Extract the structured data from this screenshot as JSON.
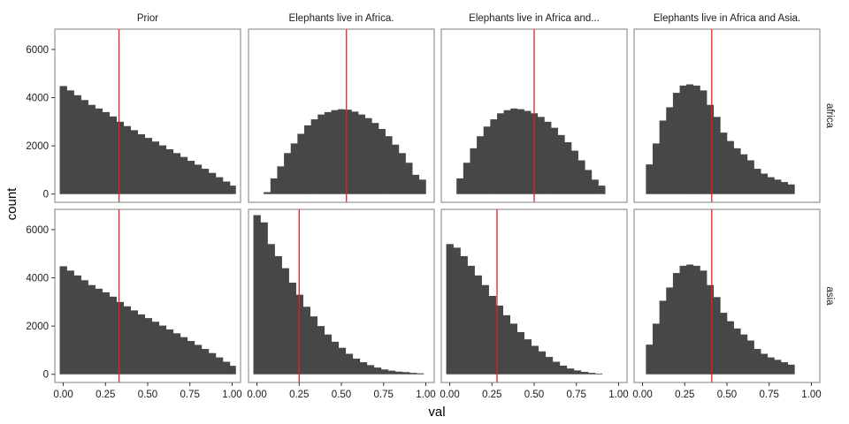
{
  "chart_data": {
    "type": "bar",
    "subtype": "histogram-facet-grid",
    "xlabel": "val",
    "ylabel": "count",
    "columns": [
      "Prior",
      "Elephants live in Africa.",
      "Elephants live in Africa and...",
      "Elephants live in Africa and Asia."
    ],
    "rows": [
      "africa",
      "asia"
    ],
    "xlim": [
      0,
      1
    ],
    "ylim": [
      0,
      6800
    ],
    "x_ticks": [
      0,
      0.25,
      0.5,
      0.75,
      1
    ],
    "x_tick_labels": [
      "0.00",
      "0.25",
      "0.50",
      "0.75",
      "1.00"
    ],
    "y_ticks": [
      0,
      2000,
      4000,
      6000
    ],
    "y_tick_labels": [
      "0",
      "2000",
      "4000",
      "6000"
    ],
    "colors": {
      "bar": "#474747",
      "reference_line": "#ee1c1c",
      "panel_border": "#7f7f7f"
    },
    "grid": false,
    "panels": [
      {
        "row": "africa",
        "column": "Prior",
        "bar_centers": [
          0.0,
          0.042,
          0.084,
          0.126,
          0.168,
          0.21,
          0.252,
          0.294,
          0.336,
          0.378,
          0.42,
          0.462,
          0.504,
          0.546,
          0.588,
          0.63,
          0.672,
          0.714,
          0.756,
          0.798,
          0.84,
          0.882,
          0.924,
          0.966,
          1.0
        ],
        "bar_width": 0.042,
        "counts": [
          4480,
          4300,
          4100,
          3900,
          3700,
          3550,
          3400,
          3220,
          3000,
          2820,
          2650,
          2480,
          2330,
          2180,
          2020,
          1860,
          1700,
          1540,
          1380,
          1220,
          1050,
          880,
          700,
          520,
          350
        ],
        "reference_line_x": 0.33
      },
      {
        "row": "africa",
        "column": "Elephants live in Africa.",
        "bar_centers": [
          0.02,
          0.06,
          0.1,
          0.14,
          0.18,
          0.22,
          0.26,
          0.3,
          0.34,
          0.38,
          0.42,
          0.46,
          0.5,
          0.54,
          0.58,
          0.62,
          0.66,
          0.7,
          0.74,
          0.78,
          0.82,
          0.86,
          0.9,
          0.94,
          0.98
        ],
        "bar_width": 0.04,
        "counts": [
          0,
          80,
          650,
          1150,
          1700,
          2100,
          2500,
          2850,
          3100,
          3300,
          3400,
          3480,
          3520,
          3500,
          3420,
          3300,
          3150,
          2950,
          2700,
          2400,
          2050,
          1700,
          1300,
          800,
          600
        ],
        "reference_line_x": 0.53
      },
      {
        "row": "africa",
        "column": "Elephants live in Africa and...",
        "bar_centers": [
          0.02,
          0.06,
          0.1,
          0.14,
          0.18,
          0.22,
          0.26,
          0.3,
          0.34,
          0.38,
          0.42,
          0.46,
          0.5,
          0.54,
          0.58,
          0.62,
          0.66,
          0.7,
          0.74,
          0.78,
          0.82,
          0.86,
          0.9,
          0.94,
          0.98
        ],
        "bar_width": 0.04,
        "counts": [
          0,
          650,
          1300,
          1900,
          2400,
          2800,
          3100,
          3350,
          3480,
          3550,
          3520,
          3450,
          3350,
          3200,
          3000,
          2750,
          2450,
          2150,
          1800,
          1400,
          1000,
          600,
          350,
          0,
          0
        ],
        "reference_line_x": 0.5
      },
      {
        "row": "africa",
        "column": "Elephants live in Africa and Asia.",
        "bar_centers": [
          0.04,
          0.08,
          0.12,
          0.16,
          0.2,
          0.24,
          0.28,
          0.32,
          0.36,
          0.4,
          0.44,
          0.48,
          0.52,
          0.56,
          0.6,
          0.64,
          0.68,
          0.72,
          0.76,
          0.8,
          0.84,
          0.88,
          0.92,
          0.96,
          1.0
        ],
        "bar_width": 0.04,
        "counts": [
          1230,
          2100,
          3050,
          3600,
          4200,
          4500,
          4550,
          4500,
          4300,
          3700,
          3200,
          2550,
          2200,
          1900,
          1650,
          1400,
          1050,
          850,
          700,
          600,
          500,
          400,
          0,
          0,
          0
        ],
        "reference_line_x": 0.41
      },
      {
        "row": "asia",
        "column": "Prior",
        "bar_centers": [
          0.0,
          0.042,
          0.084,
          0.126,
          0.168,
          0.21,
          0.252,
          0.294,
          0.336,
          0.378,
          0.42,
          0.462,
          0.504,
          0.546,
          0.588,
          0.63,
          0.672,
          0.714,
          0.756,
          0.798,
          0.84,
          0.882,
          0.924,
          0.966,
          1.0
        ],
        "bar_width": 0.042,
        "counts": [
          4480,
          4300,
          4100,
          3900,
          3700,
          3550,
          3400,
          3220,
          3000,
          2820,
          2650,
          2480,
          2330,
          2180,
          2020,
          1860,
          1700,
          1540,
          1380,
          1220,
          1050,
          880,
          700,
          520,
          350
        ],
        "reference_line_x": 0.33
      },
      {
        "row": "asia",
        "column": "Elephants live in Africa.",
        "bar_centers": [
          0.0,
          0.042,
          0.084,
          0.126,
          0.168,
          0.21,
          0.252,
          0.294,
          0.336,
          0.378,
          0.42,
          0.462,
          0.504,
          0.546,
          0.588,
          0.63,
          0.672,
          0.714,
          0.756,
          0.798,
          0.84,
          0.882,
          0.924,
          0.966,
          1.0
        ],
        "bar_width": 0.042,
        "counts": [
          6600,
          6300,
          5400,
          4900,
          4400,
          3800,
          3300,
          2800,
          2400,
          2000,
          1650,
          1350,
          1100,
          850,
          650,
          500,
          380,
          280,
          200,
          150,
          110,
          90,
          60,
          40,
          0
        ],
        "reference_line_x": 0.25
      },
      {
        "row": "asia",
        "column": "Elephants live in Africa and...",
        "bar_centers": [
          0.0,
          0.042,
          0.084,
          0.126,
          0.168,
          0.21,
          0.252,
          0.294,
          0.336,
          0.378,
          0.42,
          0.462,
          0.504,
          0.546,
          0.588,
          0.63,
          0.672,
          0.714,
          0.756,
          0.798,
          0.84,
          0.882,
          0.924,
          0.966,
          1.0
        ],
        "bar_width": 0.042,
        "counts": [
          5400,
          5250,
          4900,
          4500,
          4100,
          3700,
          3250,
          2850,
          2450,
          2100,
          1750,
          1450,
          1180,
          950,
          720,
          520,
          360,
          240,
          160,
          100,
          60,
          30,
          0,
          0,
          0
        ],
        "reference_line_x": 0.28
      },
      {
        "row": "asia",
        "column": "Elephants live in Africa and Asia.",
        "bar_centers": [
          0.04,
          0.08,
          0.12,
          0.16,
          0.2,
          0.24,
          0.28,
          0.32,
          0.36,
          0.4,
          0.44,
          0.48,
          0.52,
          0.56,
          0.6,
          0.64,
          0.68,
          0.72,
          0.76,
          0.8,
          0.84,
          0.88,
          0.92,
          0.96,
          1.0
        ],
        "bar_width": 0.04,
        "counts": [
          1230,
          2100,
          3050,
          3600,
          4200,
          4500,
          4550,
          4500,
          4300,
          3700,
          3200,
          2550,
          2200,
          1900,
          1650,
          1400,
          1050,
          850,
          700,
          600,
          500,
          400,
          0,
          0,
          0
        ],
        "reference_line_x": 0.41
      }
    ]
  }
}
